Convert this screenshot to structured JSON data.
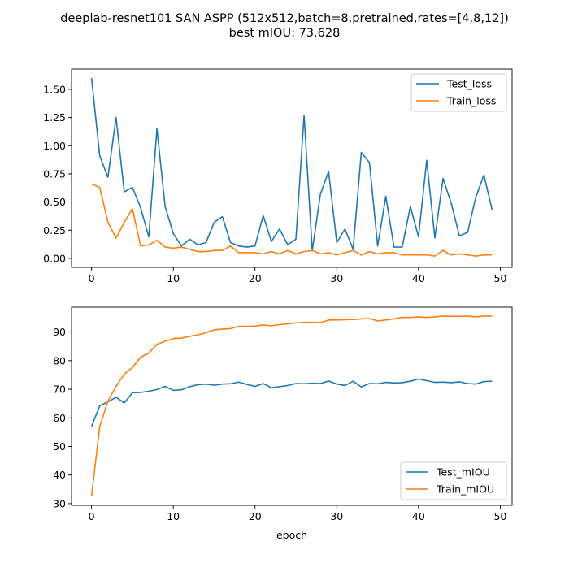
{
  "title_line1": "deeplab-resnet101 SAN ASPP (512x512,batch=8,pretrained,rates=[4,8,12])",
  "title_line2": "best mIOU: 73.628",
  "colors": {
    "test": "#1f77b4",
    "train": "#ff7f0e"
  },
  "chart_data": [
    {
      "type": "line",
      "x": [
        0,
        1,
        2,
        3,
        4,
        5,
        6,
        7,
        8,
        9,
        10,
        11,
        12,
        13,
        14,
        15,
        16,
        17,
        18,
        19,
        20,
        21,
        22,
        23,
        24,
        25,
        26,
        27,
        28,
        29,
        30,
        31,
        32,
        33,
        34,
        35,
        36,
        37,
        38,
        39,
        40,
        41,
        42,
        43,
        44,
        45,
        46,
        47,
        48,
        49
      ],
      "xlim": [
        -2.45,
        51.45
      ],
      "ylim": [
        -0.08,
        1.68
      ],
      "xticks": [
        0,
        10,
        20,
        30,
        40,
        50
      ],
      "yticks": [
        0.0,
        0.25,
        0.5,
        0.75,
        1.0,
        1.25,
        1.5
      ],
      "ytick_labels": [
        "0.00",
        "0.25",
        "0.50",
        "0.75",
        "1.00",
        "1.25",
        "1.50"
      ],
      "legend_position": "top-right",
      "grid": false,
      "series": [
        {
          "name": "Test_loss",
          "color": "#1f77b4",
          "values": [
            1.6,
            0.91,
            0.72,
            1.25,
            0.59,
            0.63,
            0.45,
            0.19,
            1.15,
            0.46,
            0.22,
            0.11,
            0.17,
            0.12,
            0.14,
            0.32,
            0.37,
            0.14,
            0.11,
            0.1,
            0.11,
            0.38,
            0.15,
            0.26,
            0.12,
            0.17,
            1.27,
            0.07,
            0.57,
            0.77,
            0.14,
            0.26,
            0.08,
            0.94,
            0.85,
            0.11,
            0.55,
            0.1,
            0.1,
            0.46,
            0.19,
            0.87,
            0.18,
            0.71,
            0.49,
            0.2,
            0.23,
            0.54,
            0.74,
            0.43
          ]
        },
        {
          "name": "Train_loss",
          "color": "#ff7f0e",
          "values": [
            0.66,
            0.63,
            0.32,
            0.18,
            0.32,
            0.44,
            0.11,
            0.12,
            0.16,
            0.1,
            0.09,
            0.1,
            0.08,
            0.06,
            0.06,
            0.07,
            0.07,
            0.11,
            0.05,
            0.05,
            0.05,
            0.04,
            0.06,
            0.04,
            0.07,
            0.04,
            0.06,
            0.07,
            0.04,
            0.05,
            0.03,
            0.05,
            0.07,
            0.03,
            0.06,
            0.04,
            0.05,
            0.05,
            0.03,
            0.03,
            0.03,
            0.03,
            0.02,
            0.07,
            0.03,
            0.04,
            0.03,
            0.02,
            0.03,
            0.03
          ]
        }
      ]
    },
    {
      "type": "line",
      "x": [
        0,
        1,
        2,
        3,
        4,
        5,
        6,
        7,
        8,
        9,
        10,
        11,
        12,
        13,
        14,
        15,
        16,
        17,
        18,
        19,
        20,
        21,
        22,
        23,
        24,
        25,
        26,
        27,
        28,
        29,
        30,
        31,
        32,
        33,
        34,
        35,
        36,
        37,
        38,
        39,
        40,
        41,
        42,
        43,
        44,
        45,
        46,
        47,
        48,
        49
      ],
      "xlim": [
        -2.45,
        51.45
      ],
      "ylim": [
        29.4,
        98.7
      ],
      "xticks": [
        0,
        10,
        20,
        30,
        40,
        50
      ],
      "yticks": [
        30,
        40,
        50,
        60,
        70,
        80,
        90
      ],
      "ytick_labels": [
        "30",
        "40",
        "50",
        "60",
        "70",
        "80",
        "90"
      ],
      "xlabel": "epoch",
      "legend_position": "bottom-right",
      "grid": false,
      "series": [
        {
          "name": "Test_mIOU",
          "color": "#1f77b4",
          "values": [
            57.0,
            64.2,
            65.6,
            67.2,
            65.2,
            68.8,
            68.9,
            69.3,
            69.9,
            71.0,
            69.6,
            69.8,
            70.9,
            71.6,
            71.8,
            71.4,
            71.8,
            71.9,
            72.5,
            71.7,
            71.0,
            72.0,
            70.5,
            70.9,
            71.3,
            72.0,
            71.9,
            72.1,
            72.0,
            72.9,
            71.8,
            71.3,
            72.8,
            70.8,
            72.0,
            71.9,
            72.4,
            72.2,
            72.3,
            72.8,
            73.6,
            73.0,
            72.4,
            72.5,
            72.3,
            72.6,
            72.0,
            71.8,
            72.7,
            72.8
          ]
        },
        {
          "name": "Train_mIOU",
          "color": "#ff7f0e",
          "values": [
            32.7,
            57.0,
            65.8,
            71.0,
            75.3,
            77.6,
            81.2,
            82.6,
            85.7,
            86.8,
            87.7,
            87.9,
            88.5,
            89.0,
            89.8,
            90.8,
            91.0,
            91.2,
            92.0,
            92.0,
            92.1,
            92.5,
            92.2,
            92.6,
            92.9,
            93.2,
            93.4,
            93.4,
            93.3,
            94.2,
            94.2,
            94.3,
            94.4,
            94.6,
            94.7,
            93.9,
            94.2,
            94.6,
            95.1,
            95.1,
            95.3,
            95.1,
            95.3,
            95.6,
            95.5,
            95.5,
            95.6,
            95.3,
            95.6,
            95.6
          ]
        }
      ]
    }
  ]
}
